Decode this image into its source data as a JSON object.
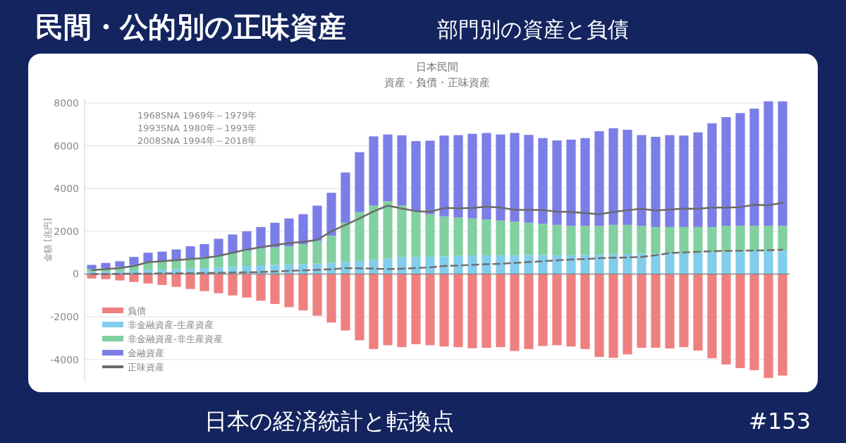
{
  "chart_data": {
    "type": "bar",
    "stacked": true,
    "title": "日本民間",
    "subtitle": "資産・負債・正味資産",
    "ylabel": "金額 [兆円]",
    "annotations": [
      "民間・公的別の正味資産",
      "部門別の資産と負債",
      "1968SNA 1969年～1979年",
      "1993SNA 1980年～1993年",
      "2008SNA 1994年～2018年",
      "日本の経済統計と転換点",
      "#153"
    ],
    "categories": [
      null,
      null,
      null,
      null,
      null,
      null,
      null,
      null,
      null,
      null,
      null,
      null,
      null,
      null,
      null,
      null,
      null,
      null,
      null,
      null,
      null,
      null,
      null,
      null,
      null,
      null,
      null,
      null,
      null,
      null,
      null,
      null,
      null,
      null,
      null,
      null,
      null,
      null,
      null,
      null,
      null,
      null,
      null,
      null,
      null,
      null,
      null,
      null,
      null,
      null
    ],
    "series": [
      {
        "name": "負債",
        "color": "#ef8080",
        "values": [
          -210,
          -240,
          -300,
          -370,
          -440,
          -510,
          -600,
          -700,
          -800,
          -900,
          -1000,
          -1100,
          -1250,
          -1400,
          -1550,
          -1700,
          -1950,
          -2270,
          -2640,
          -3100,
          -3510,
          -3330,
          -3420,
          -3280,
          -3330,
          -3390,
          -3420,
          -3470,
          -3450,
          -3420,
          -3600,
          -3510,
          -3370,
          -3330,
          -3390,
          -3510,
          -3880,
          -3920,
          -3760,
          -3450,
          -3450,
          -3480,
          -3420,
          -3580,
          -3940,
          -4230,
          -4400,
          -4500,
          -4860,
          -4750
        ]
      },
      {
        "name": "非金融資産-生産資産",
        "color": "#82cdec",
        "values": [
          100,
          110,
          120,
          150,
          190,
          210,
          230,
          250,
          280,
          310,
          340,
          380,
          410,
          430,
          450,
          470,
          490,
          520,
          560,
          610,
          670,
          730,
          780,
          800,
          810,
          830,
          850,
          870,
          880,
          880,
          880,
          890,
          890,
          880,
          880,
          890,
          900,
          920,
          940,
          950,
          950,
          960,
          970,
          990,
          1010,
          1030,
          1050,
          1070,
          1090,
          1100
        ]
      },
      {
        "name": "非金融資産-非生産資産",
        "color": "#80d0a0",
        "values": [
          130,
          170,
          210,
          270,
          370,
          400,
          420,
          490,
          510,
          570,
          630,
          720,
          790,
          820,
          850,
          930,
          1060,
          1280,
          1840,
          2290,
          2530,
          2670,
          2420,
          2150,
          1990,
          1870,
          1800,
          1730,
          1670,
          1620,
          1570,
          1510,
          1460,
          1420,
          1370,
          1360,
          1350,
          1380,
          1360,
          1300,
          1250,
          1240,
          1230,
          1210,
          1190,
          1220,
          1200,
          1180,
          1160,
          1150
        ]
      },
      {
        "name": "金融資産",
        "color": "#7b7ee6",
        "values": [
          200,
          240,
          270,
          380,
          440,
          440,
          500,
          560,
          610,
          770,
          880,
          900,
          1000,
          1150,
          1300,
          1400,
          1650,
          2000,
          2350,
          2800,
          3240,
          3130,
          3290,
          3270,
          3440,
          3780,
          3850,
          3960,
          4050,
          4030,
          4150,
          4110,
          4010,
          3950,
          4040,
          4110,
          4430,
          4520,
          4450,
          4250,
          4220,
          4300,
          4280,
          4430,
          4850,
          5090,
          5280,
          5490,
          5830,
          5830
        ]
      },
      {
        "type": "line",
        "name": "正味資産",
        "color": "#6a6a6a",
        "values": [
          180,
          230,
          280,
          380,
          550,
          600,
          650,
          700,
          750,
          850,
          1000,
          1150,
          1250,
          1350,
          1450,
          1500,
          1600,
          2000,
          2300,
          2600,
          2930,
          3200,
          3070,
          2940,
          2910,
          3090,
          3080,
          3090,
          3150,
          3110,
          3000,
          3000,
          2990,
          2920,
          2900,
          2850,
          2800,
          2900,
          2990,
          3050,
          2970,
          3020,
          3060,
          3050,
          3110,
          3110,
          3130,
          3240,
          3220,
          3330
        ]
      },
      {
        "type": "line",
        "line_style": "dashed",
        "color": "#707070",
        "values": [
          0,
          0,
          10,
          20,
          20,
          30,
          30,
          40,
          50,
          60,
          70,
          80,
          100,
          120,
          150,
          170,
          200,
          220,
          280,
          270,
          250,
          230,
          250,
          280,
          310,
          380,
          400,
          430,
          460,
          480,
          520,
          560,
          600,
          640,
          680,
          700,
          740,
          760,
          780,
          800,
          880,
          980,
          1010,
          1040,
          1070,
          1080,
          1090,
          1100,
          1110,
          1140
        ]
      }
    ],
    "ylim": [
      -5000,
      8200
    ],
    "yticks": [
      -4000,
      -2000,
      0,
      2000,
      4000,
      6000,
      8000
    ],
    "grid": "y",
    "legend": "bottom left"
  }
}
